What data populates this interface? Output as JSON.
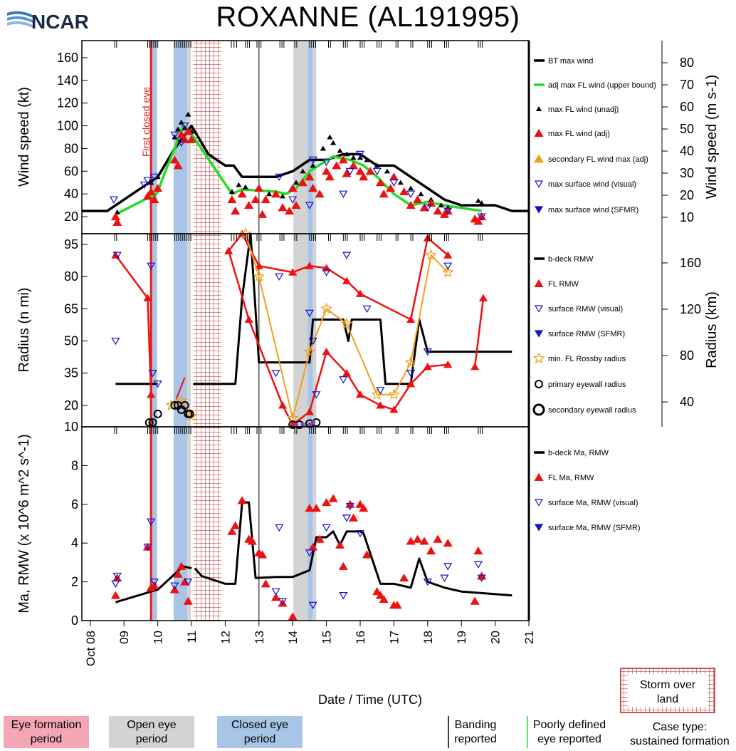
{
  "page": {
    "title": "ROXANNE (AL191995)",
    "logo_text": "NCAR",
    "x_axis_label": "Date / Time (UTC)",
    "x_ticks": [
      "Oct 08",
      "09",
      "10",
      "11",
      "12",
      "13",
      "14",
      "15",
      "16",
      "17",
      "18",
      "19",
      "20",
      "21"
    ],
    "first_closed_eye_label": "First closed eye"
  },
  "legend_bottom": {
    "eye_formation": "Eye formation\nperiod",
    "open_eye": "Open eye\nperiod",
    "closed_eye": "Closed eye\nperiod",
    "banding": "Banding\nreported",
    "poorly_defined": "Poorly defined\neye reported",
    "case_type": "Case type:\nsustained formation",
    "storm_over_land": "Storm over\nland"
  },
  "colors": {
    "eye_formation": "#f4a6b4",
    "open_eye": "#d3d3d3",
    "closed_eye": "#a8c4e6",
    "land_hatch": "#b22222",
    "best_track": "#000000",
    "adj_fl_wind": "#22dd22",
    "fl_symbols": "#ee1111",
    "rossby": "#f0a020",
    "surface": "#1111cc"
  },
  "chart_data": [
    {
      "type": "line",
      "panel": "wind",
      "ylabel": "Wind speed (kt)",
      "ylabel_right": "Wind speed (m s-1)",
      "ylim": [
        5,
        175
      ],
      "yticks": [
        20,
        40,
        60,
        80,
        100,
        120,
        140,
        160
      ],
      "yticks_right": [
        10,
        20,
        30,
        40,
        50,
        60,
        70,
        80
      ],
      "xlim": [
        7.75,
        21
      ],
      "legend": [
        "BT max wind",
        "adj max FL wind (upper bound)",
        "max FL wind (unadj)",
        "max FL wind (adj)",
        "secondary FL wind max (adj)",
        "max surface wind (visual)",
        "max surface wind (SFMR)"
      ],
      "series": [
        {
          "name": "BT max wind",
          "x": [
            7.75,
            8.5,
            9.0,
            9.5,
            10.0,
            10.5,
            11.0,
            11.5,
            12.0,
            12.25,
            12.5,
            13.0,
            13.5,
            14.0,
            14.5,
            15.0,
            15.5,
            16.0,
            16.5,
            17.0,
            17.5,
            18.0,
            18.5,
            19.0,
            19.5,
            20.0,
            20.5,
            21.0
          ],
          "y": [
            25,
            25,
            35,
            45,
            55,
            80,
            100,
            75,
            65,
            65,
            55,
            55,
            55,
            60,
            70,
            70,
            75,
            75,
            65,
            65,
            55,
            45,
            35,
            30,
            30,
            30,
            25,
            25
          ]
        },
        {
          "name": "adj max FL wind (upper bound)",
          "x": [
            8.75,
            9.8,
            9.9,
            10.0,
            10.2,
            10.5,
            10.75,
            10.95,
            12.2,
            12.5,
            13.0,
            13.5,
            13.8,
            14.1,
            14.5,
            15.2,
            15.7,
            16.1,
            16.5,
            17.0,
            17.5,
            18.0,
            18.5,
            19.6
          ],
          "y": [
            22,
            38,
            38,
            42,
            58,
            80,
            100,
            95,
            40,
            44,
            43,
            42,
            40,
            45,
            60,
            73,
            70,
            65,
            55,
            40,
            30,
            33,
            30,
            25
          ]
        },
        {
          "name": "max FL wind (unadj)",
          "x": [
            8.8,
            9.8,
            10.0,
            10.5,
            10.6,
            10.7,
            10.8,
            10.9,
            11.0,
            12.2,
            12.4,
            12.6,
            13.0,
            13.3,
            13.7,
            14.1,
            14.3,
            14.6,
            14.9,
            15.1,
            15.2,
            15.4,
            15.6,
            15.8,
            16.0,
            16.2,
            16.5,
            16.8,
            17.0,
            17.2,
            17.5,
            17.8,
            18.1,
            18.4,
            18.6,
            19.5,
            19.6
          ],
          "y": [
            24,
            50,
            55,
            90,
            97,
            103,
            98,
            110,
            95,
            42,
            48,
            46,
            44,
            40,
            38,
            50,
            60,
            65,
            80,
            90,
            85,
            78,
            75,
            72,
            72,
            70,
            65,
            60,
            55,
            50,
            45,
            40,
            35,
            30,
            28,
            34,
            32
          ]
        },
        {
          "name": "max FL wind (adj)",
          "x": [
            8.75,
            8.8,
            9.7,
            9.8,
            9.9,
            10.0,
            10.5,
            10.6,
            10.7,
            10.8,
            10.9,
            11.0,
            12.2,
            12.3,
            12.5,
            12.7,
            12.9,
            13.0,
            13.1,
            13.2,
            13.5,
            13.7,
            13.9,
            14.0,
            14.1,
            14.3,
            14.5,
            14.6,
            14.8,
            15.0,
            15.1,
            15.3,
            15.5,
            15.6,
            15.8,
            16.0,
            16.1,
            16.3,
            16.6,
            16.7,
            16.9,
            17.0,
            17.3,
            17.5,
            17.7,
            17.9,
            18.1,
            18.3,
            18.5,
            18.6,
            19.4,
            19.5,
            19.6
          ],
          "y": [
            20,
            15,
            38,
            42,
            35,
            45,
            70,
            65,
            92,
            88,
            95,
            88,
            35,
            25,
            40,
            30,
            35,
            45,
            22,
            35,
            40,
            28,
            25,
            45,
            30,
            50,
            55,
            45,
            40,
            60,
            55,
            65,
            70,
            58,
            65,
            60,
            55,
            60,
            50,
            40,
            45,
            55,
            42,
            30,
            35,
            28,
            32,
            25,
            22,
            25,
            18,
            16,
            20
          ]
        },
        {
          "name": "max surface wind (visual)",
          "x": [
            8.7,
            9.6,
            9.7,
            9.9,
            10.5,
            10.7,
            10.8,
            13.6,
            14.0,
            14.5,
            14.6,
            15.0,
            15.5,
            15.7,
            16.0,
            16.5,
            17.0,
            17.5,
            18.0,
            18.6,
            19.6
          ],
          "y": [
            35,
            48,
            52,
            55,
            92,
            85,
            100,
            55,
            35,
            30,
            70,
            68,
            40,
            60,
            75,
            60,
            50,
            40,
            28,
            25,
            20
          ]
        }
      ]
    },
    {
      "type": "line",
      "panel": "radius",
      "ylabel": "Radius (n mi)",
      "ylabel_right": "Radius (km)",
      "yticks": [
        10,
        20,
        35,
        50,
        65,
        80,
        95
      ],
      "yticks_right": [
        40,
        80,
        120,
        160
      ],
      "legend": [
        "b-deck RMW",
        "FL RMW",
        "surface RMW (visual)",
        "surface RMW (SFMR)",
        "min. FL Rossby radius",
        "primary eyewall radius",
        "secondary eyewall radius"
      ],
      "series": [
        {
          "name": "b-deck RMW",
          "segments": [
            [
              [
                8.75,
                30
              ],
              [
                10.0,
                30
              ]
            ],
            [
              [
                11.05,
                30
              ],
              [
                12.3,
                30
              ],
              [
                12.5,
                70
              ],
              [
                12.75,
                100
              ],
              [
                13.0,
                40
              ],
              [
                13.5,
                40
              ],
              [
                14.5,
                40
              ],
              [
                14.6,
                60
              ],
              [
                15.5,
                60
              ],
              [
                15.65,
                50
              ],
              [
                15.75,
                60
              ],
              [
                16.6,
                60
              ],
              [
                16.75,
                30
              ],
              [
                17.5,
                30
              ],
              [
                17.75,
                60
              ],
              [
                18.0,
                45
              ],
              [
                20.5,
                45
              ]
            ]
          ]
        },
        {
          "name": "FL RMW",
          "segments": [
            [
              [
                8.75,
                90
              ],
              [
                9.7,
                70
              ],
              [
                9.8,
                25
              ]
            ],
            [
              [
                12.1,
                92
              ],
              [
                12.5,
                100
              ],
              [
                13.0,
                85
              ],
              [
                14.0,
                82
              ],
              [
                14.5,
                85
              ],
              [
                15.0,
                84
              ],
              [
                15.6,
                78
              ],
              [
                16.0,
                72
              ],
              [
                17.5,
                60
              ],
              [
                18.0,
                98
              ],
              [
                18.6,
                90
              ]
            ],
            [
              [
                12.1,
                92
              ],
              [
                12.7,
                60
              ],
              [
                13.7,
                20
              ],
              [
                14.0,
                11
              ],
              [
                14.5,
                17
              ],
              [
                15.0,
                45
              ],
              [
                15.6,
                35
              ],
              [
                16.0,
                25
              ],
              [
                16.6,
                20
              ],
              [
                17.0,
                18
              ],
              [
                17.5,
                30
              ],
              [
                18.0,
                38
              ],
              [
                18.6,
                39
              ]
            ],
            [
              [
                19.4,
                38
              ],
              [
                19.65,
                70
              ]
            ]
          ]
        },
        {
          "name": "min. FL Rossby radius",
          "segments": [
            [
              [
                12.6,
                100
              ],
              [
                13.0,
                80
              ],
              [
                14.0,
                14
              ],
              [
                14.5,
                45
              ],
              [
                15.0,
                65
              ],
              [
                15.6,
                58
              ],
              [
                16.5,
                25
              ],
              [
                17.0,
                25
              ],
              [
                17.5,
                40
              ],
              [
                18.1,
                90
              ],
              [
                18.6,
                82
              ]
            ],
            [
              [
                10.4,
                20
              ],
              [
                10.7,
                22
              ],
              [
                11.0,
                15
              ]
            ]
          ]
        }
      ]
    },
    {
      "type": "line",
      "panel": "angular_momentum",
      "ylabel": "Ma, RMW (x 10^6 m^2 s^-1)",
      "ylim": [
        0,
        10
      ],
      "yticks": [
        0,
        2,
        4,
        6,
        8
      ],
      "legend": [
        "b-deck Ma, RMW",
        "FL Ma, RMW",
        "surface Ma, RMW (visual)",
        "surface Ma, RMW (SFMR)"
      ],
      "series": [
        {
          "name": "b-deck Ma, RMW",
          "segments": [
            [
              [
                8.75,
                0.95
              ],
              [
                10.0,
                1.6
              ],
              [
                10.5,
                2.4
              ],
              [
                10.75,
                2.8
              ],
              [
                11.0,
                2.7
              ]
            ],
            [
              [
                11.1,
                2.7
              ],
              [
                11.3,
                2.3
              ],
              [
                12.0,
                1.9
              ],
              [
                12.3,
                1.9
              ],
              [
                12.5,
                6.1
              ],
              [
                12.7,
                6.1
              ],
              [
                12.9,
                2.2
              ],
              [
                13.5,
                2.25
              ],
              [
                14.0,
                2.25
              ],
              [
                14.5,
                2.6
              ],
              [
                14.7,
                4.3
              ],
              [
                15.0,
                4.3
              ],
              [
                15.2,
                4.6
              ],
              [
                15.4,
                3.9
              ],
              [
                15.6,
                4.6
              ],
              [
                16.0,
                4.6
              ],
              [
                16.1,
                4.5
              ],
              [
                16.6,
                1.9
              ],
              [
                17.0,
                1.9
              ],
              [
                17.5,
                1.7
              ],
              [
                17.75,
                3.2
              ],
              [
                18.0,
                2.0
              ],
              [
                18.5,
                1.7
              ],
              [
                19.0,
                1.5
              ],
              [
                20.5,
                1.3
              ]
            ]
          ]
        }
      ]
    }
  ]
}
